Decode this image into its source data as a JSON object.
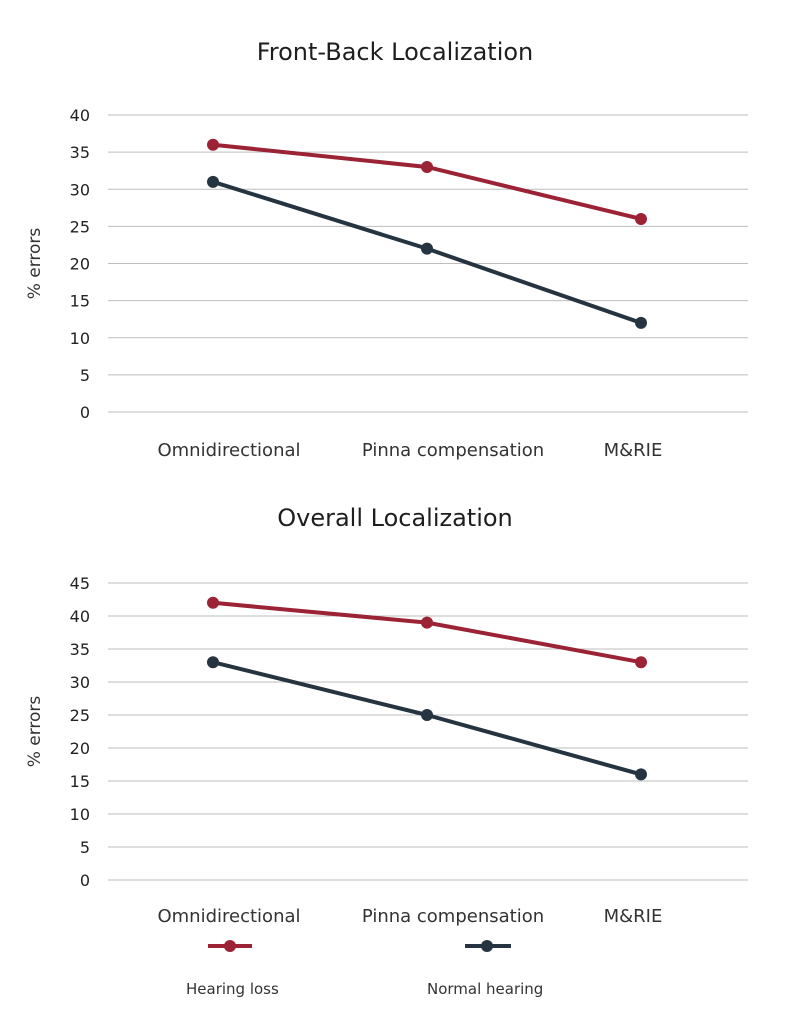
{
  "colors": {
    "hearing_loss": "#9b2335",
    "normal_hearing": "#253440",
    "grid": "#bdbdbd"
  },
  "chart_data": [
    {
      "type": "line",
      "title": "Front-Back Localization",
      "ylabel": "% errors",
      "ylim": [
        0,
        40
      ],
      "yticks": [
        0,
        5,
        10,
        15,
        20,
        25,
        30,
        35,
        40
      ],
      "categories": [
        "Omnidirectional",
        "Pinna compensation",
        "M&RIE"
      ],
      "grid": true,
      "series": [
        {
          "name": "Hearing loss",
          "values": [
            36,
            33,
            26
          ]
        },
        {
          "name": "Normal hearing",
          "values": [
            31,
            22,
            12
          ]
        }
      ]
    },
    {
      "type": "line",
      "title": "Overall Localization",
      "ylabel": "% errors",
      "ylim": [
        0,
        45
      ],
      "yticks": [
        0,
        5,
        10,
        15,
        20,
        25,
        30,
        35,
        40,
        45
      ],
      "categories": [
        "Omnidirectional",
        "Pinna compensation",
        "M&RIE"
      ],
      "grid": true,
      "legend": "bottom",
      "series": [
        {
          "name": "Hearing loss",
          "values": [
            42,
            39,
            33
          ]
        },
        {
          "name": "Normal hearing",
          "values": [
            33,
            25,
            16
          ]
        }
      ]
    }
  ],
  "legend": {
    "items": [
      {
        "label": "Hearing loss"
      },
      {
        "label": "Normal hearing"
      }
    ]
  }
}
